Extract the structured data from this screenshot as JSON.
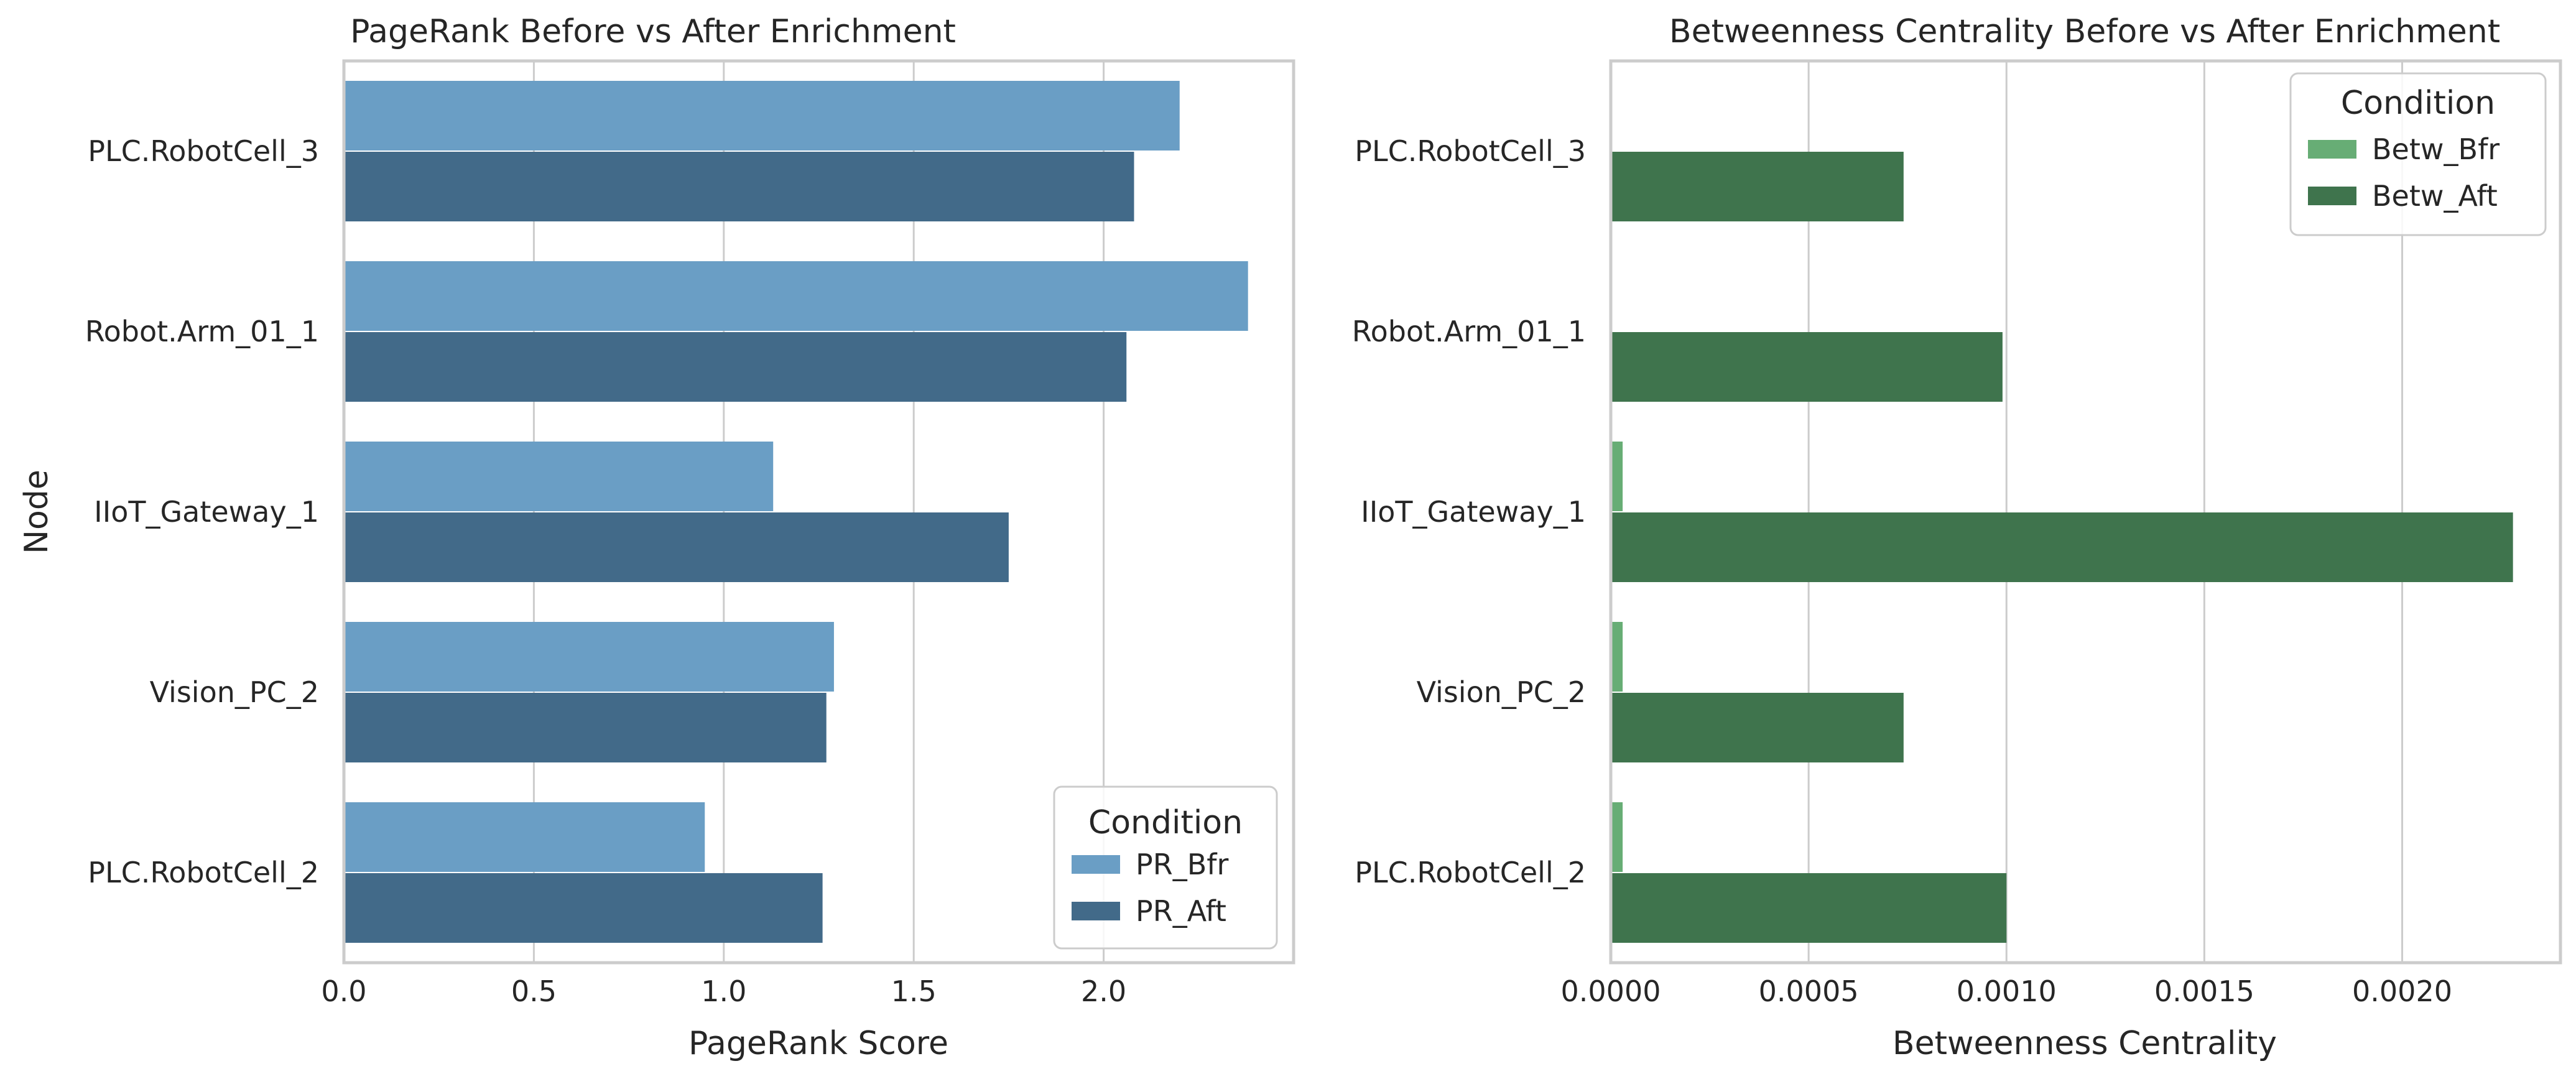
{
  "chart_data": [
    {
      "type": "bar",
      "orientation": "horizontal",
      "title": "PageRank Before vs After Enrichment",
      "xlabel": "PageRank Score",
      "ylabel": "Node",
      "categories": [
        "PLC.RobotCell_3",
        "Robot.Arm_01_1",
        "IIoT_Gateway_1",
        "Vision_PC_2",
        "PLC.RobotCell_2"
      ],
      "series": [
        {
          "name": "PR_Bfr",
          "color": "#6a9ec5",
          "values": [
            2.2,
            2.38,
            1.13,
            1.29,
            0.95
          ]
        },
        {
          "name": "PR_Aft",
          "color": "#426a89",
          "values": [
            2.08,
            2.06,
            1.75,
            1.27,
            1.26
          ]
        }
      ],
      "xlim": [
        0,
        2.5
      ],
      "xticks": [
        0.0,
        0.5,
        1.0,
        1.5,
        2.0
      ],
      "xtick_labels": [
        "0.0",
        "0.5",
        "1.0",
        "1.5",
        "2.0"
      ],
      "grid": true,
      "legend_title": "Condition",
      "legend_position": "lower-right"
    },
    {
      "type": "bar",
      "orientation": "horizontal",
      "title": "Betweenness Centrality Before vs After Enrichment",
      "xlabel": "Betweenness Centrality",
      "ylabel": "",
      "categories": [
        "PLC.RobotCell_3",
        "Robot.Arm_01_1",
        "IIoT_Gateway_1",
        "Vision_PC_2",
        "PLC.RobotCell_2"
      ],
      "series": [
        {
          "name": "Betw_Bfr",
          "color": "#67ad75",
          "values": [
            0.0,
            0.0,
            3e-05,
            3e-05,
            3e-05
          ]
        },
        {
          "name": "Betw_Aft",
          "color": "#3f744d",
          "values": [
            0.00074,
            0.00099,
            0.00228,
            0.00074,
            0.001
          ]
        }
      ],
      "xlim": [
        0,
        0.0024
      ],
      "xticks": [
        0.0,
        0.0005,
        0.001,
        0.0015,
        0.002
      ],
      "xtick_labels": [
        "0.0000",
        "0.0005",
        "0.0010",
        "0.0015",
        "0.0020"
      ],
      "grid": true,
      "legend_title": "Condition",
      "legend_position": "upper-right"
    }
  ]
}
